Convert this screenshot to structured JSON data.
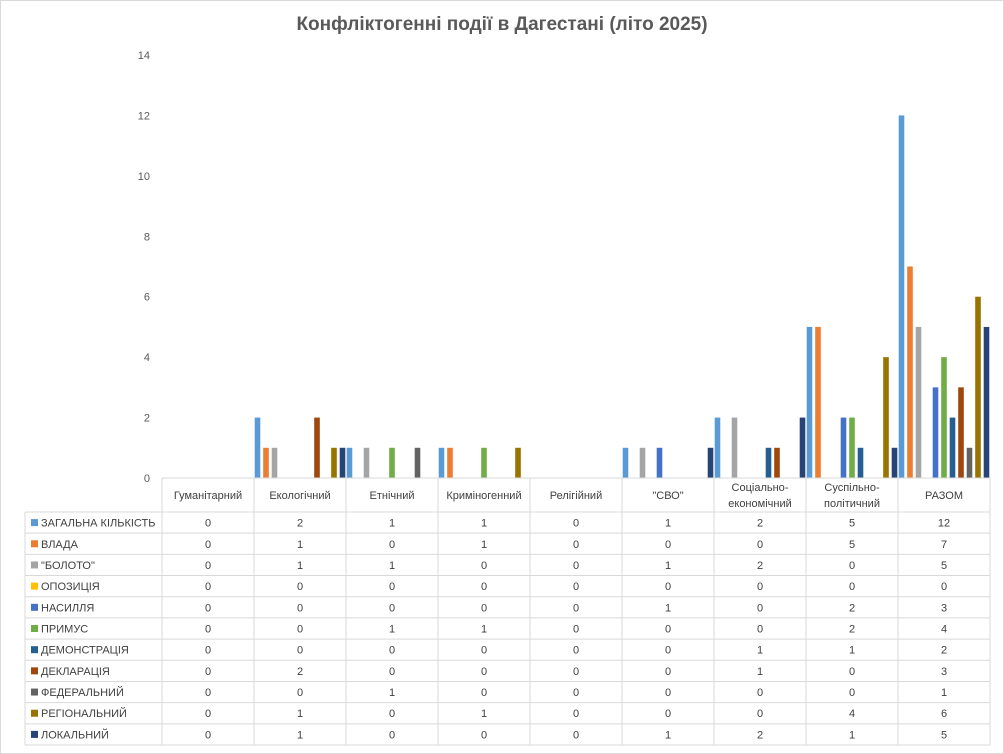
{
  "chart_data": {
    "type": "bar",
    "title": "Конфліктогенні події в Дагестані (літо 2025)",
    "ylim": [
      0,
      14
    ],
    "yticks": [
      0,
      2,
      4,
      6,
      8,
      10,
      12,
      14
    ],
    "grid": false,
    "legend": "data-table",
    "categories": [
      [
        "Гуманітарний"
      ],
      [
        "Екологічний"
      ],
      [
        "Етнічний"
      ],
      [
        "Криміногенний"
      ],
      [
        "Релігійний"
      ],
      [
        "\"СВО\""
      ],
      [
        "Соціально-",
        "економічний"
      ],
      [
        "Суспільно-",
        "політичний"
      ],
      [
        "РАЗОМ"
      ]
    ],
    "series": [
      {
        "name": "ЗАГАЛЬНА КІЛЬКІСТЬ",
        "color": "#5b9bd5",
        "values": [
          0,
          2,
          1,
          1,
          0,
          1,
          2,
          5,
          12
        ]
      },
      {
        "name": "ВЛАДА",
        "color": "#ed7d31",
        "values": [
          0,
          1,
          0,
          1,
          0,
          0,
          0,
          5,
          7
        ]
      },
      {
        "name": "\"БОЛОТО\"",
        "color": "#a5a5a5",
        "values": [
          0,
          1,
          1,
          0,
          0,
          1,
          2,
          0,
          5
        ]
      },
      {
        "name": "ОПОЗИЦІЯ",
        "color": "#ffc000",
        "values": [
          0,
          0,
          0,
          0,
          0,
          0,
          0,
          0,
          0
        ]
      },
      {
        "name": "НАСИЛЛЯ",
        "color": "#4472c4",
        "values": [
          0,
          0,
          0,
          0,
          0,
          1,
          0,
          2,
          3
        ]
      },
      {
        "name": "ПРИМУС",
        "color": "#70ad47",
        "values": [
          0,
          0,
          1,
          1,
          0,
          0,
          0,
          2,
          4
        ]
      },
      {
        "name": "ДЕМОНСТРАЦІЯ",
        "color": "#255e91",
        "values": [
          0,
          0,
          0,
          0,
          0,
          0,
          1,
          1,
          2
        ]
      },
      {
        "name": "ДЕКЛАРАЦІЯ",
        "color": "#9e480e",
        "values": [
          0,
          2,
          0,
          0,
          0,
          0,
          1,
          0,
          3
        ]
      },
      {
        "name": "ФЕДЕРАЛЬНИЙ",
        "color": "#636363",
        "values": [
          0,
          0,
          1,
          0,
          0,
          0,
          0,
          0,
          1
        ]
      },
      {
        "name": "РЕГІОНАЛЬНИЙ",
        "color": "#997300",
        "values": [
          0,
          1,
          0,
          1,
          0,
          0,
          0,
          4,
          6
        ]
      },
      {
        "name": "ЛОКАЛЬНИЙ",
        "color": "#264478",
        "values": [
          0,
          1,
          0,
          0,
          0,
          1,
          2,
          1,
          5
        ]
      }
    ]
  }
}
